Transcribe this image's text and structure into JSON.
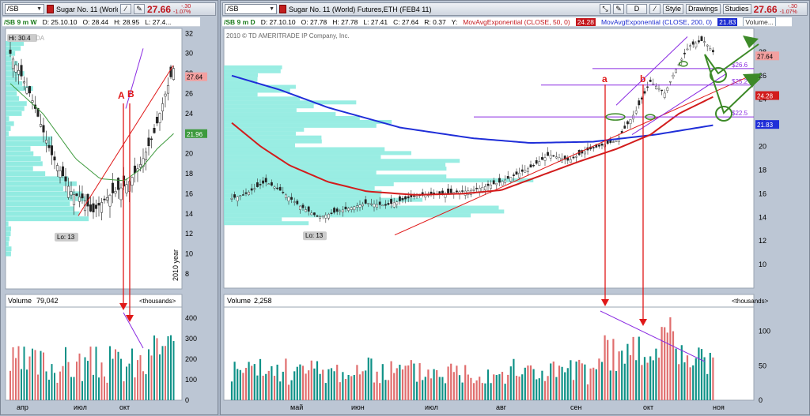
{
  "left_window": {
    "symbol": "/SB",
    "title": "Sugar No. 11 (World...",
    "price": "27.66",
    "change": "-.30",
    "change_pct": "-1.07%",
    "info": {
      "chart": "/SB 9 m W",
      "date": "D: 25.10.10",
      "open": "O: 28.44",
      "high": "H: 28.95",
      "low": "L: 27.4..."
    },
    "hi_label": "Hi: 30.4",
    "lo_label": "Lo: 13",
    "year_label": "2010 year",
    "ghost": "DA",
    "yticks": [
      "32",
      "30",
      "28",
      "26",
      "24",
      "22",
      "20",
      "18",
      "16",
      "14",
      "12",
      "10",
      "8"
    ],
    "last_price": "27.64",
    "ma_value": "21.96",
    "annot": {
      "A": "A",
      "B": "B"
    },
    "volume": {
      "label": "Volume",
      "value": "79,042",
      "unit": "<thousands>",
      "ticks": [
        "400",
        "300",
        "200",
        "100",
        "0"
      ]
    },
    "xlabels": [
      "апр",
      "июл",
      "окт"
    ]
  },
  "right_window": {
    "symbol": "/SB",
    "title": "Sugar No. 11 (World)  Futures,ETH (FEB4 11)",
    "price": "27.66",
    "change": "-.30",
    "change_pct": "-1.07%",
    "buttons": {
      "d": "D",
      "style": "Style",
      "drawings": "Drawings",
      "studies": "Studies"
    },
    "info": {
      "chart": "/SB 9 m D",
      "date": "D: 27.10.10",
      "open": "O: 27.78",
      "high": "H: 27.78",
      "low": "L: 27.41",
      "close": "C: 27.64",
      "range": "R: 0.37",
      "y": "Y:"
    },
    "ma50": {
      "label": "MovAvgExponential (CLOSE, 50, 0)",
      "value": "24.28"
    },
    "ma200": {
      "label": "MovAvgExponential (CLOSE, 200, 0)",
      "value": "21.83"
    },
    "volume_btn": "Volume...",
    "copyright": "2010 © TD AMERITRADE IP Company, Inc.",
    "lo_label": "Lo: 13",
    "yticks": [
      "28",
      "26",
      "24",
      "22",
      "20",
      "18",
      "16",
      "14",
      "12",
      "10"
    ],
    "right_labels": {
      "last": "27.64",
      "ma50": "24.28",
      "ma200": "21.83"
    },
    "levels": [
      "$26.6",
      "$25.2",
      "$22.5"
    ],
    "annot": {
      "a": "a",
      "b": "b"
    },
    "volume": {
      "label": "Volume",
      "value": "2,258",
      "unit": "<thousands>",
      "ticks": [
        "100",
        "50",
        "0"
      ]
    },
    "xlabels": [
      "май",
      "июн",
      "июл",
      "авг",
      "сен",
      "окт",
      "ноя"
    ]
  },
  "colors": {
    "up": "#0e9187",
    "down": "#e06e6e",
    "profile": "#7fe8dc",
    "ma50": "#d21c1c",
    "ma200": "#1f2ed8",
    "annot": "#e01818",
    "forecast": "#3d8a28",
    "level": "#8a2be2"
  }
}
